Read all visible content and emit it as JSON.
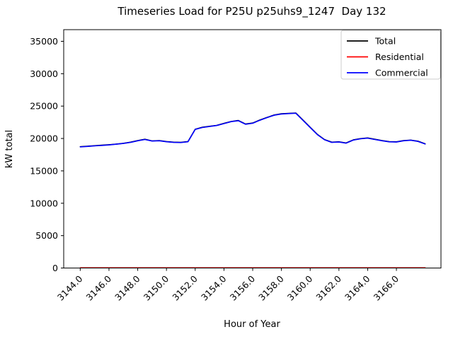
{
  "title": "Timeseries Load for P25U p25uhs9_1247  Day 132",
  "axes": {
    "xlabel": "Hour of Year",
    "ylabel": "kW total"
  },
  "legend": {
    "position": "upper right",
    "entries": [
      {
        "label": "Total",
        "color": "#000000"
      },
      {
        "label": "Residential",
        "color": "#ff0000"
      },
      {
        "label": "Commercial",
        "color": "#0000ff"
      }
    ]
  },
  "chart_data": {
    "type": "line",
    "title": "Timeseries Load for P25U p25uhs9_1247  Day 132",
    "xlabel": "Hour of Year",
    "ylabel": "kW total",
    "xlim": [
      3142.85,
      3169.1
    ],
    "ylim": [
      0,
      36800
    ],
    "grid": false,
    "xtick_values": [
      3144,
      3146,
      3148,
      3150,
      3152,
      3154,
      3156,
      3158,
      3160,
      3162,
      3164,
      3166
    ],
    "xtick_labels": [
      "3144.0",
      "3146.0",
      "3148.0",
      "3150.0",
      "3152.0",
      "3154.0",
      "3156.0",
      "3158.0",
      "3160.0",
      "3162.0",
      "3164.0",
      "3166.0"
    ],
    "ytick_values": [
      0,
      5000,
      10000,
      15000,
      20000,
      25000,
      30000,
      35000
    ],
    "ytick_labels": [
      "0",
      "5000",
      "10000",
      "15000",
      "20000",
      "25000",
      "30000",
      "35000"
    ],
    "x": [
      3144.0,
      3144.5,
      3145.0,
      3145.5,
      3146.0,
      3146.5,
      3147.0,
      3147.5,
      3148.0,
      3148.5,
      3149.0,
      3149.5,
      3150.0,
      3150.5,
      3151.0,
      3151.5,
      3152.0,
      3152.5,
      3153.0,
      3153.5,
      3154.0,
      3154.5,
      3155.0,
      3155.5,
      3156.0,
      3156.5,
      3157.0,
      3157.5,
      3158.0,
      3158.5,
      3159.0,
      3159.5,
      3160.0,
      3160.5,
      3161.0,
      3161.5,
      3162.0,
      3162.5,
      3163.0,
      3163.5,
      3164.0,
      3164.5,
      3165.0,
      3165.5,
      3166.0,
      3166.5,
      3167.0,
      3167.5,
      3168.0
    ],
    "series": [
      {
        "name": "Total",
        "color": "#000000",
        "values": [
          18730,
          18810,
          18890,
          18960,
          19040,
          19140,
          19260,
          19430,
          19680,
          19880,
          19630,
          19680,
          19530,
          19430,
          19410,
          19530,
          21430,
          21730,
          21880,
          22030,
          22330,
          22630,
          22780,
          22230,
          22380,
          22850,
          23250,
          23630,
          23810,
          23880,
          23930,
          22830,
          21730,
          20630,
          19830,
          19430,
          19480,
          19310,
          19780,
          19980,
          20080,
          19880,
          19680,
          19510,
          19480,
          19680,
          19750,
          19580,
          19180
        ]
      },
      {
        "name": "Residential",
        "color": "#ff0000",
        "values": [
          30,
          30,
          30,
          30,
          30,
          30,
          30,
          30,
          30,
          30,
          30,
          30,
          30,
          30,
          30,
          30,
          30,
          30,
          30,
          30,
          30,
          30,
          30,
          30,
          30,
          30,
          30,
          30,
          30,
          30,
          30,
          30,
          30,
          30,
          30,
          30,
          30,
          30,
          30,
          30,
          30,
          30,
          30,
          30,
          30,
          30,
          30,
          30,
          30
        ]
      },
      {
        "name": "Commercial",
        "color": "#0000ff",
        "values": [
          18700,
          18780,
          18860,
          18930,
          19010,
          19110,
          19230,
          19400,
          19650,
          19850,
          19600,
          19650,
          19500,
          19400,
          19380,
          19500,
          21400,
          21700,
          21850,
          22000,
          22300,
          22600,
          22750,
          22200,
          22350,
          22820,
          23220,
          23600,
          23780,
          23850,
          23900,
          22800,
          21700,
          20600,
          19800,
          19400,
          19450,
          19280,
          19750,
          19950,
          20050,
          19850,
          19650,
          19480,
          19450,
          19650,
          19720,
          19550,
          19150
        ]
      }
    ]
  }
}
